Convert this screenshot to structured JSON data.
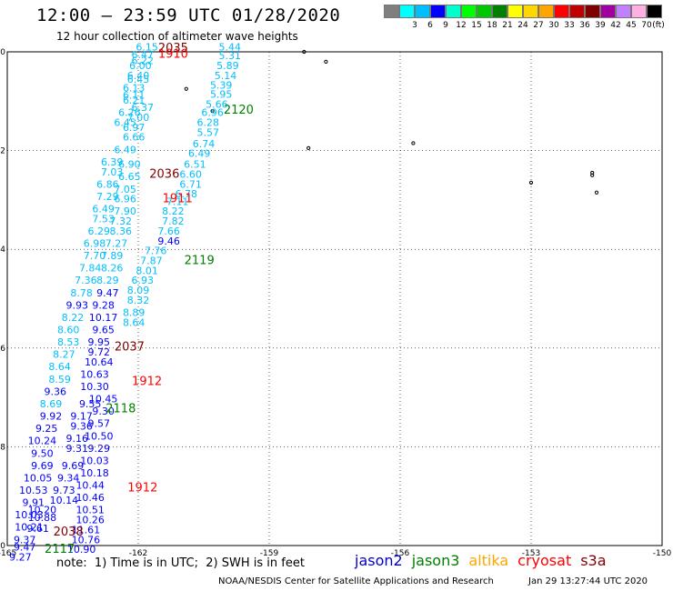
{
  "header": {
    "title": "12:00 – 23:59 UTC 01/28/2020",
    "subtitle": "12 hour collection of altimeter wave heights"
  },
  "legend": {
    "unit": "(ft)",
    "bins": [
      {
        "label": "",
        "color": "#7f7f7f"
      },
      {
        "label": "3",
        "color": "#00ffff"
      },
      {
        "label": "6",
        "color": "#00bfff"
      },
      {
        "label": "9",
        "color": "#0000ff"
      },
      {
        "label": "12",
        "color": "#00ffcc"
      },
      {
        "label": "15",
        "color": "#00ff00"
      },
      {
        "label": "18",
        "color": "#00c800"
      },
      {
        "label": "21",
        "color": "#008000"
      },
      {
        "label": "24",
        "color": "#ffff00"
      },
      {
        "label": "27",
        "color": "#ffd700"
      },
      {
        "label": "30",
        "color": "#ffa500"
      },
      {
        "label": "33",
        "color": "#ff0000"
      },
      {
        "label": "36",
        "color": "#c00000"
      },
      {
        "label": "39",
        "color": "#800000"
      },
      {
        "label": "42",
        "color": "#a000a0"
      },
      {
        "label": "45",
        "color": "#c080ff"
      },
      {
        "label": "70",
        "color": "#ffb0e0"
      },
      {
        "label": "",
        "color": "#000000"
      }
    ]
  },
  "map": {
    "lon_range": [
      -165,
      -150
    ],
    "lat_range": [
      -30,
      -20
    ],
    "lon_ticks": [
      "-165",
      "-162",
      "-159",
      "-156",
      "-153",
      "-150"
    ],
    "lat_ticks": [
      "-20",
      "-22",
      "-24",
      "-26",
      "-28",
      "-30"
    ],
    "tracks": [
      {
        "label": "2035",
        "color": "#800000",
        "lon": -161.2,
        "lat": -20.0
      },
      {
        "label": "1910",
        "color": "#ff0000",
        "lon": -161.2,
        "lat": -20.12
      },
      {
        "label": "2120",
        "color": "#008000",
        "lon": -159.7,
        "lat": -21.25
      },
      {
        "label": "2036",
        "color": "#800000",
        "lon": -161.4,
        "lat": -22.55
      },
      {
        "label": "1911",
        "color": "#ff0000",
        "lon": -161.1,
        "lat": -23.05
      },
      {
        "label": "2119",
        "color": "#008000",
        "lon": -160.6,
        "lat": -24.3
      },
      {
        "label": "2037",
        "color": "#800000",
        "lon": -162.2,
        "lat": -26.05
      },
      {
        "label": "1912",
        "color": "#ff0000",
        "lon": -161.8,
        "lat": -26.75
      },
      {
        "label": "2118",
        "color": "#008000",
        "lon": -162.4,
        "lat": -27.3
      },
      {
        "label": "1912",
        "color": "#ff0000",
        "lon": -161.9,
        "lat": -28.9
      },
      {
        "label": "2038",
        "color": "#800000",
        "lon": -163.6,
        "lat": -29.8
      },
      {
        "label": "2117",
        "color": "#008000",
        "lon": -163.8,
        "lat": -30.15
      }
    ],
    "obs": [
      {
        "v": "6.15",
        "c": "#00bfff",
        "lon": -161.8,
        "lat": -19.97
      },
      {
        "v": "5.44",
        "c": "#00bfff",
        "lon": -159.9,
        "lat": -19.97
      },
      {
        "v": "6.47",
        "c": "#00bfff",
        "lon": -161.9,
        "lat": -20.13
      },
      {
        "v": "5.31",
        "c": "#00bfff",
        "lon": -159.9,
        "lat": -20.15
      },
      {
        "v": "6.22",
        "c": "#00bfff",
        "lon": -161.9,
        "lat": -20.25
      },
      {
        "v": "5.89",
        "c": "#00bfff",
        "lon": -159.95,
        "lat": -20.35
      },
      {
        "v": "6.00",
        "c": "#00bfff",
        "lon": -161.95,
        "lat": -20.35
      },
      {
        "v": "6.40",
        "c": "#00bfff",
        "lon": -162.0,
        "lat": -20.55
      },
      {
        "v": "5.14",
        "c": "#00bfff",
        "lon": -160.0,
        "lat": -20.55
      },
      {
        "v": "6.45",
        "c": "#00bfff",
        "lon": -162.0,
        "lat": -20.63
      },
      {
        "v": "6.13",
        "c": "#00bfff",
        "lon": -162.1,
        "lat": -20.8
      },
      {
        "v": "5.39",
        "c": "#00bfff",
        "lon": -160.1,
        "lat": -20.75
      },
      {
        "v": "6.11",
        "c": "#00bfff",
        "lon": -162.1,
        "lat": -20.95
      },
      {
        "v": "5.95",
        "c": "#00bfff",
        "lon": -160.1,
        "lat": -20.93
      },
      {
        "v": "6.21",
        "c": "#00bfff",
        "lon": -162.1,
        "lat": -21.05
      },
      {
        "v": "6.37",
        "c": "#00bfff",
        "lon": -161.9,
        "lat": -21.2
      },
      {
        "v": "5.66",
        "c": "#00bfff",
        "lon": -160.2,
        "lat": -21.13
      },
      {
        "v": "6.96",
        "c": "#00bfff",
        "lon": -160.3,
        "lat": -21.3
      },
      {
        "v": "6.26",
        "c": "#00bfff",
        "lon": -162.2,
        "lat": -21.3
      },
      {
        "v": "7.00",
        "c": "#00bfff",
        "lon": -162.0,
        "lat": -21.4
      },
      {
        "v": "6.28",
        "c": "#00bfff",
        "lon": -160.4,
        "lat": -21.5
      },
      {
        "v": "6.45",
        "c": "#00bfff",
        "lon": -162.3,
        "lat": -21.5
      },
      {
        "v": "6.97",
        "c": "#00bfff",
        "lon": -162.1,
        "lat": -21.6
      },
      {
        "v": "5.57",
        "c": "#00bfff",
        "lon": -160.4,
        "lat": -21.7
      },
      {
        "v": "6.66",
        "c": "#00bfff",
        "lon": -162.1,
        "lat": -21.8
      },
      {
        "v": "6.74",
        "c": "#00bfff",
        "lon": -160.5,
        "lat": -21.93
      },
      {
        "v": "6.49",
        "c": "#00bfff",
        "lon": -162.3,
        "lat": -22.05
      },
      {
        "v": "6.49",
        "c": "#00bfff",
        "lon": -160.6,
        "lat": -22.13
      },
      {
        "v": "6.39",
        "c": "#00bfff",
        "lon": -162.6,
        "lat": -22.3
      },
      {
        "v": "6.90",
        "c": "#00bfff",
        "lon": -162.2,
        "lat": -22.35
      },
      {
        "v": "6.51",
        "c": "#00bfff",
        "lon": -160.7,
        "lat": -22.35
      },
      {
        "v": "7.03",
        "c": "#00bfff",
        "lon": -162.6,
        "lat": -22.5
      },
      {
        "v": "6.65",
        "c": "#00bfff",
        "lon": -162.2,
        "lat": -22.6
      },
      {
        "v": "6.60",
        "c": "#00bfff",
        "lon": -160.8,
        "lat": -22.55
      },
      {
        "v": "6.71",
        "c": "#00bfff",
        "lon": -160.8,
        "lat": -22.75
      },
      {
        "v": "6.86",
        "c": "#00bfff",
        "lon": -162.7,
        "lat": -22.75
      },
      {
        "v": "7.05",
        "c": "#00bfff",
        "lon": -162.3,
        "lat": -22.85
      },
      {
        "v": "6.78",
        "c": "#00bfff",
        "lon": -160.9,
        "lat": -22.95
      },
      {
        "v": "7.29",
        "c": "#00bfff",
        "lon": -162.7,
        "lat": -23.0
      },
      {
        "v": "6.96",
        "c": "#00bfff",
        "lon": -162.3,
        "lat": -23.05
      },
      {
        "v": "7.11",
        "c": "#00bfff",
        "lon": -161.1,
        "lat": -23.1
      },
      {
        "v": "6.49",
        "c": "#00bfff",
        "lon": -162.8,
        "lat": -23.25
      },
      {
        "v": "7.90",
        "c": "#00bfff",
        "lon": -162.3,
        "lat": -23.3
      },
      {
        "v": "8.22",
        "c": "#00bfff",
        "lon": -161.2,
        "lat": -23.3
      },
      {
        "v": "7.53",
        "c": "#00bfff",
        "lon": -162.8,
        "lat": -23.45
      },
      {
        "v": "7.32",
        "c": "#00bfff",
        "lon": -162.4,
        "lat": -23.5
      },
      {
        "v": "7.82",
        "c": "#00bfff",
        "lon": -161.2,
        "lat": -23.5
      },
      {
        "v": "6.29",
        "c": "#00bfff",
        "lon": -162.9,
        "lat": -23.7
      },
      {
        "v": "8.36",
        "c": "#00bfff",
        "lon": -162.4,
        "lat": -23.7
      },
      {
        "v": "7.66",
        "c": "#00bfff",
        "lon": -161.3,
        "lat": -23.7
      },
      {
        "v": "6.98",
        "c": "#00bfff",
        "lon": -163.0,
        "lat": -23.95
      },
      {
        "v": "7.27",
        "c": "#00bfff",
        "lon": -162.5,
        "lat": -23.95
      },
      {
        "v": "9.46",
        "c": "#0000ff",
        "lon": -161.3,
        "lat": -23.9
      },
      {
        "v": "7.76",
        "c": "#00bfff",
        "lon": -161.6,
        "lat": -24.1
      },
      {
        "v": "7.70",
        "c": "#00bfff",
        "lon": -163.0,
        "lat": -24.2
      },
      {
        "v": "7.89",
        "c": "#00bfff",
        "lon": -162.6,
        "lat": -24.2
      },
      {
        "v": "7.87",
        "c": "#00bfff",
        "lon": -161.7,
        "lat": -24.3
      },
      {
        "v": "7.84",
        "c": "#00bfff",
        "lon": -163.1,
        "lat": -24.45
      },
      {
        "v": "8.26",
        "c": "#00bfff",
        "lon": -162.6,
        "lat": -24.45
      },
      {
        "v": "8.01",
        "c": "#00bfff",
        "lon": -161.8,
        "lat": -24.5
      },
      {
        "v": "7.36",
        "c": "#00bfff",
        "lon": -163.2,
        "lat": -24.7
      },
      {
        "v": "8.29",
        "c": "#00bfff",
        "lon": -162.7,
        "lat": -24.7
      },
      {
        "v": "6.93",
        "c": "#00bfff",
        "lon": -161.9,
        "lat": -24.7
      },
      {
        "v": "8.78",
        "c": "#00bfff",
        "lon": -163.3,
        "lat": -24.95
      },
      {
        "v": "9.47",
        "c": "#0000ff",
        "lon": -162.7,
        "lat": -24.95
      },
      {
        "v": "8.09",
        "c": "#00bfff",
        "lon": -162.0,
        "lat": -24.9
      },
      {
        "v": "9.93",
        "c": "#0000ff",
        "lon": -163.4,
        "lat": -25.2
      },
      {
        "v": "9.28",
        "c": "#0000ff",
        "lon": -162.8,
        "lat": -25.2
      },
      {
        "v": "8.32",
        "c": "#00bfff",
        "lon": -162.0,
        "lat": -25.1
      },
      {
        "v": "8.22",
        "c": "#00bfff",
        "lon": -163.5,
        "lat": -25.45
      },
      {
        "v": "10.17",
        "c": "#0000ff",
        "lon": -162.8,
        "lat": -25.45
      },
      {
        "v": "8.89",
        "c": "#00bfff",
        "lon": -162.1,
        "lat": -25.35
      },
      {
        "v": "8.60",
        "c": "#00bfff",
        "lon": -163.6,
        "lat": -25.7
      },
      {
        "v": "9.65",
        "c": "#0000ff",
        "lon": -162.8,
        "lat": -25.7
      },
      {
        "v": "8.64",
        "c": "#00bfff",
        "lon": -162.1,
        "lat": -25.55
      },
      {
        "v": "8.53",
        "c": "#00bfff",
        "lon": -163.6,
        "lat": -25.95
      },
      {
        "v": "9.95",
        "c": "#0000ff",
        "lon": -162.9,
        "lat": -25.95
      },
      {
        "v": "8.27",
        "c": "#00bfff",
        "lon": -163.7,
        "lat": -26.2
      },
      {
        "v": "9.72",
        "c": "#0000ff",
        "lon": -162.9,
        "lat": -26.15
      },
      {
        "v": "8.64",
        "c": "#00bfff",
        "lon": -163.8,
        "lat": -26.45
      },
      {
        "v": "10.64",
        "c": "#0000ff",
        "lon": -162.9,
        "lat": -26.35
      },
      {
        "v": "8.59",
        "c": "#00bfff",
        "lon": -163.8,
        "lat": -26.7
      },
      {
        "v": "10.63",
        "c": "#0000ff",
        "lon": -163.0,
        "lat": -26.6
      },
      {
        "v": "9.36",
        "c": "#0000ff",
        "lon": -163.9,
        "lat": -26.95
      },
      {
        "v": "10.30",
        "c": "#0000ff",
        "lon": -163.0,
        "lat": -26.85
      },
      {
        "v": "8.69",
        "c": "#00bfff",
        "lon": -164.0,
        "lat": -27.2
      },
      {
        "v": "9.55",
        "c": "#0000ff",
        "lon": -163.1,
        "lat": -27.2
      },
      {
        "v": "10.45",
        "c": "#0000ff",
        "lon": -162.8,
        "lat": -27.1
      },
      {
        "v": "9.92",
        "c": "#0000ff",
        "lon": -164.0,
        "lat": -27.45
      },
      {
        "v": "9.17",
        "c": "#0000ff",
        "lon": -163.3,
        "lat": -27.45
      },
      {
        "v": "9.30",
        "c": "#0000ff",
        "lon": -162.8,
        "lat": -27.35
      },
      {
        "v": "9.25",
        "c": "#0000ff",
        "lon": -164.1,
        "lat": -27.7
      },
      {
        "v": "9.36",
        "c": "#0000ff",
        "lon": -163.3,
        "lat": -27.65
      },
      {
        "v": "9.57",
        "c": "#0000ff",
        "lon": -162.9,
        "lat": -27.6
      },
      {
        "v": "10.24",
        "c": "#0000ff",
        "lon": -164.2,
        "lat": -27.95
      },
      {
        "v": "9.16",
        "c": "#0000ff",
        "lon": -163.4,
        "lat": -27.9
      },
      {
        "v": "10.50",
        "c": "#0000ff",
        "lon": -162.9,
        "lat": -27.85
      },
      {
        "v": "9.31",
        "c": "#0000ff",
        "lon": -163.4,
        "lat": -28.1
      },
      {
        "v": "9.29",
        "c": "#0000ff",
        "lon": -162.9,
        "lat": -28.1
      },
      {
        "v": "9.50",
        "c": "#0000ff",
        "lon": -164.2,
        "lat": -28.2
      },
      {
        "v": "9.69",
        "c": "#0000ff",
        "lon": -164.2,
        "lat": -28.45
      },
      {
        "v": "9.69",
        "c": "#0000ff",
        "lon": -163.5,
        "lat": -28.45
      },
      {
        "v": "10.03",
        "c": "#0000ff",
        "lon": -163.0,
        "lat": -28.35
      },
      {
        "v": "9.34",
        "c": "#0000ff",
        "lon": -163.6,
        "lat": -28.7
      },
      {
        "v": "10.18",
        "c": "#0000ff",
        "lon": -163.0,
        "lat": -28.6
      },
      {
        "v": "10.05",
        "c": "#0000ff",
        "lon": -164.3,
        "lat": -28.7
      },
      {
        "v": "9.73",
        "c": "#0000ff",
        "lon": -163.7,
        "lat": -28.95
      },
      {
        "v": "10.44",
        "c": "#0000ff",
        "lon": -163.1,
        "lat": -28.85
      },
      {
        "v": "10.53",
        "c": "#0000ff",
        "lon": -164.4,
        "lat": -28.95
      },
      {
        "v": "10.14",
        "c": "#0000ff",
        "lon": -163.7,
        "lat": -29.15
      },
      {
        "v": "10.46",
        "c": "#0000ff",
        "lon": -163.1,
        "lat": -29.1
      },
      {
        "v": "9.91",
        "c": "#0000ff",
        "lon": -164.4,
        "lat": -29.2
      },
      {
        "v": "10.20",
        "c": "#0000ff",
        "lon": -164.2,
        "lat": -29.35
      },
      {
        "v": "10.51",
        "c": "#0000ff",
        "lon": -163.1,
        "lat": -29.35
      },
      {
        "v": "10.03",
        "c": "#0000ff",
        "lon": -164.5,
        "lat": -29.45
      },
      {
        "v": "10.88",
        "c": "#0000ff",
        "lon": -164.2,
        "lat": -29.5
      },
      {
        "v": "10.26",
        "c": "#0000ff",
        "lon": -163.1,
        "lat": -29.55
      },
      {
        "v": "10.21",
        "c": "#0000ff",
        "lon": -164.5,
        "lat": -29.7
      },
      {
        "v": "9.61",
        "c": "#0000ff",
        "lon": -164.3,
        "lat": -29.72
      },
      {
        "v": "11.61",
        "c": "#0000ff",
        "lon": -163.2,
        "lat": -29.75
      },
      {
        "v": "9.37",
        "c": "#0000ff",
        "lon": -164.6,
        "lat": -29.95
      },
      {
        "v": "10.76",
        "c": "#0000ff",
        "lon": -163.2,
        "lat": -29.95
      },
      {
        "v": "9.47",
        "c": "#0000ff",
        "lon": -164.6,
        "lat": -30.1
      },
      {
        "v": "10.90",
        "c": "#0000ff",
        "lon": -163.3,
        "lat": -30.15
      },
      {
        "v": "9.27",
        "c": "#0000ff",
        "lon": -164.7,
        "lat": -30.3
      }
    ],
    "islands": [
      {
        "lon": -157.7,
        "lat": -20.2
      },
      {
        "lon": -160.9,
        "lat": -20.75
      },
      {
        "lon": -160.3,
        "lat": -21.2
      },
      {
        "lon": -158.1,
        "lat": -21.95
      },
      {
        "lon": -155.7,
        "lat": -21.85
      },
      {
        "lon": -153.0,
        "lat": -22.65
      },
      {
        "lon": -151.6,
        "lat": -22.45
      },
      {
        "lon": -151.6,
        "lat": -22.5
      },
      {
        "lon": -151.5,
        "lat": -22.85
      },
      {
        "lon": -158.2,
        "lat": -20.0
      }
    ]
  },
  "note": "note:  1) Time is in UTC;  2) SWH is in feet",
  "satellites": [
    {
      "name": "jason2",
      "color": "#0000cd"
    },
    {
      "name": "jason3",
      "color": "#008000"
    },
    {
      "name": "altika",
      "color": "#ffa500"
    },
    {
      "name": "cryosat",
      "color": "#ff0000"
    },
    {
      "name": "s3a",
      "color": "#800000"
    }
  ],
  "footer": {
    "source": "NOAA/NESDIS Center for Satellite Applications and Research",
    "timestamp": "Jan 29 13:27:44 UTC 2020"
  }
}
